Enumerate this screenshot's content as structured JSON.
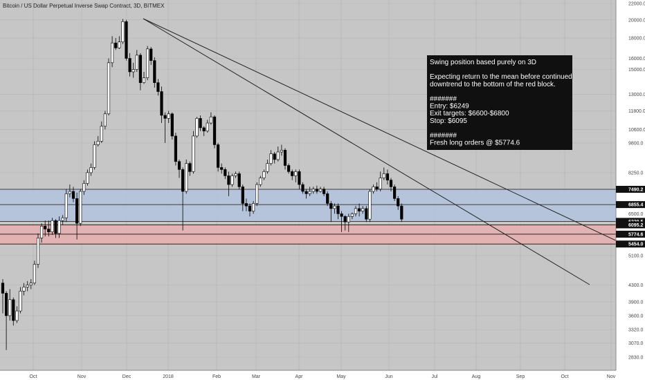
{
  "chart_data": {
    "type": "candlestick",
    "title": "Bitcoin / US Dollar Perpetual Inverse Swap Contract, 3D, BITMEX",
    "y_scale": "log",
    "ylim": [
      2650,
      22500
    ],
    "y_ticks": [
      "22000.0",
      "20000.0",
      "18000.0",
      "16000.0",
      "15000.0",
      "13000.0",
      "11800.0",
      "10600.0",
      "9800.0",
      "8250.0",
      "6500.0",
      "5100.0",
      "4300.0",
      "3900.0",
      "3600.0",
      "3320.0",
      "3070.0",
      "2830.0"
    ],
    "x_ticks": [
      "Oct",
      "Nov",
      "Dec",
      "2018",
      "Feb",
      "Mar",
      "Apr",
      "May",
      "Jun",
      "Jul",
      "Aug",
      "Sep",
      "Oct",
      "Nov"
    ],
    "levels": [
      "7490.2",
      "6855.4",
      "6220.5",
      "6095.2",
      "5774.6",
      "5454.0"
    ],
    "zones": [
      {
        "name": "blue zone",
        "from": 6220.5,
        "to": 7490.2,
        "color": "#b3c3dc"
      },
      {
        "name": "red zone",
        "from": 5454.0,
        "to": 6095.2,
        "color": "#e6b0b0"
      }
    ],
    "colors": {
      "background": "#c6c6c6",
      "bull": "#ffffff",
      "bear": "#000000",
      "grid": "#b4b4b4"
    },
    "candles": [
      [
        4350,
        4100,
        4450,
        3650
      ],
      [
        4100,
        3600,
        4150,
        2950
      ],
      [
        3600,
        3950,
        4200,
        3500
      ],
      [
        3950,
        3500,
        4000,
        3400
      ],
      [
        3500,
        3700,
        3800,
        3450
      ],
      [
        3700,
        4150,
        4250,
        3650
      ],
      [
        4150,
        4250,
        4350,
        4050
      ],
      [
        4250,
        4300,
        4400,
        4150
      ],
      [
        4300,
        4350,
        4450,
        4200
      ],
      [
        4350,
        4850,
        4950,
        4300
      ],
      [
        4850,
        5650,
        5800,
        4750
      ],
      [
        5650,
        6050,
        6150,
        5500
      ],
      [
        6050,
        5950,
        6250,
        5700
      ],
      [
        5950,
        5850,
        6250,
        5700
      ],
      [
        5850,
        6250,
        6350,
        5750
      ],
      [
        6250,
        5800,
        6300,
        5650
      ],
      [
        5800,
        6250,
        6400,
        5650
      ],
      [
        6250,
        6350,
        6450,
        6100
      ],
      [
        6350,
        7300,
        7500,
        6200
      ],
      [
        7300,
        7400,
        7700,
        7150
      ],
      [
        7400,
        7100,
        7600,
        6950
      ],
      [
        7100,
        6150,
        7350,
        5600
      ],
      [
        6150,
        7400,
        7500,
        6050
      ],
      [
        7400,
        7750,
        7900,
        7250
      ],
      [
        7750,
        8250,
        8400,
        7650
      ],
      [
        8250,
        8500,
        8700,
        8100
      ],
      [
        8500,
        9700,
        9900,
        8400
      ],
      [
        9700,
        9900,
        10200,
        9600
      ],
      [
        9900,
        10800,
        11100,
        9800
      ],
      [
        10800,
        11600,
        11800,
        10600
      ],
      [
        11600,
        15600,
        16000,
        11500
      ],
      [
        15600,
        17500,
        18200,
        15200
      ],
      [
        17500,
        17000,
        18000,
        16800
      ],
      [
        17000,
        17600,
        18200,
        16900
      ],
      [
        17600,
        19800,
        20100,
        17400
      ],
      [
        19800,
        16000,
        20000,
        15800
      ],
      [
        16000,
        14800,
        16500,
        14400
      ],
      [
        14800,
        15000,
        15600,
        14300
      ],
      [
        15000,
        16300,
        16800,
        14800
      ],
      [
        16300,
        13900,
        16500,
        13300
      ],
      [
        13900,
        14300,
        14800,
        13800
      ],
      [
        14300,
        16900,
        17200,
        14100
      ],
      [
        16900,
        15800,
        17100,
        15400
      ],
      [
        15800,
        13900,
        16100,
        13500
      ],
      [
        13900,
        13200,
        14200,
        12900
      ],
      [
        13200,
        11500,
        13600,
        11000
      ],
      [
        11500,
        11300,
        11700,
        9800
      ],
      [
        11300,
        11600,
        11800,
        11000
      ],
      [
        11600,
        10200,
        11700,
        10000
      ],
      [
        10200,
        8800,
        10400,
        8600
      ],
      [
        8800,
        8400,
        8900,
        8000
      ],
      [
        8400,
        7400,
        8500,
        5900
      ],
      [
        7400,
        8700,
        8900,
        7300
      ],
      [
        8700,
        8300,
        8800,
        8100
      ],
      [
        8300,
        10200,
        10500,
        8200
      ],
      [
        10200,
        11300,
        11400,
        10100
      ],
      [
        11300,
        10700,
        11500,
        10500
      ],
      [
        10700,
        10500,
        10800,
        10200
      ],
      [
        10500,
        11000,
        11200,
        10400
      ],
      [
        11000,
        11400,
        11700,
        10900
      ],
      [
        11400,
        9700,
        11500,
        9500
      ],
      [
        9700,
        8500,
        9800,
        8300
      ],
      [
        8500,
        8400,
        8700,
        8200
      ],
      [
        8400,
        8100,
        8500,
        7950
      ],
      [
        8100,
        7700,
        8300,
        7200
      ],
      [
        7700,
        8100,
        8200,
        7600
      ],
      [
        8100,
        8200,
        8300,
        8000
      ],
      [
        8200,
        7600,
        8300,
        7500
      ],
      [
        7600,
        6900,
        7700,
        6600
      ],
      [
        6900,
        6800,
        7100,
        6600
      ],
      [
        6800,
        6600,
        6900,
        6400
      ],
      [
        6600,
        6900,
        7000,
        6500
      ],
      [
        6900,
        7700,
        7800,
        6800
      ],
      [
        7700,
        8000,
        8100,
        7600
      ],
      [
        8000,
        8300,
        8400,
        7900
      ],
      [
        8300,
        8700,
        8900,
        8200
      ],
      [
        8700,
        9200,
        9400,
        8600
      ],
      [
        9200,
        8900,
        9300,
        8700
      ],
      [
        8900,
        9300,
        9600,
        8800
      ],
      [
        9300,
        9400,
        9700,
        9100
      ],
      [
        9400,
        8600,
        9500,
        8400
      ],
      [
        8600,
        8300,
        8700,
        8200
      ],
      [
        8300,
        8100,
        8400,
        7900
      ],
      [
        8100,
        8300,
        8400,
        7800
      ],
      [
        8300,
        7700,
        8400,
        7500
      ],
      [
        7700,
        7400,
        7800,
        7300
      ],
      [
        7400,
        7300,
        7500,
        7100
      ],
      [
        7300,
        7400,
        7600,
        7200
      ],
      [
        7400,
        7500,
        7600,
        7300
      ],
      [
        7500,
        7400,
        7650,
        7300
      ],
      [
        7400,
        7500,
        7600,
        7350
      ],
      [
        7500,
        7300,
        7600,
        7200
      ],
      [
        7300,
        6900,
        7400,
        6800
      ],
      [
        6900,
        6700,
        7000,
        6200
      ],
      [
        6700,
        6800,
        6900,
        6500
      ],
      [
        6800,
        6500,
        6900,
        6300
      ],
      [
        6500,
        6400,
        6600,
        5850
      ],
      [
        6400,
        6200,
        6450,
        5900
      ],
      [
        6200,
        6400,
        6500,
        5850
      ],
      [
        6400,
        6500,
        6550,
        6300
      ],
      [
        6500,
        6700,
        6800,
        6400
      ],
      [
        6700,
        6600,
        6900,
        6400
      ],
      [
        6600,
        6700,
        6800,
        6500
      ],
      [
        6700,
        6300,
        6800,
        6200
      ],
      [
        6300,
        7400,
        7500,
        6200
      ],
      [
        7400,
        7600,
        7700,
        7300
      ],
      [
        7600,
        7500,
        7800,
        7400
      ],
      [
        7500,
        8000,
        8300,
        7400
      ],
      [
        8000,
        8200,
        8500,
        7900
      ],
      [
        8200,
        7900,
        8400,
        7700
      ],
      [
        7900,
        7600,
        8000,
        7400
      ],
      [
        7600,
        7100,
        7700,
        7000
      ],
      [
        7100,
        6800,
        7200,
        6650
      ],
      [
        6800,
        6300,
        6900,
        6200
      ]
    ]
  },
  "annotation": {
    "lines": [
      "Swing position based purely on 3D",
      "",
      "Expecting return to the mean before continued",
      "downtrend to the bottom of the red block.",
      "",
      "#######",
      "Entry: $6249",
      "Exit targets: $6600-$6800",
      "Stop: $6095",
      "",
      "#######",
      "Fresh long orders @ $5774.6"
    ]
  }
}
